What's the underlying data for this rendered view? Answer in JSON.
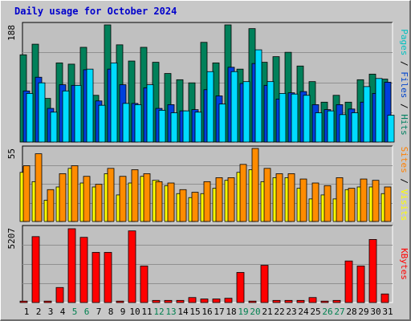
{
  "chart_data": {
    "type": "bar",
    "title": "Daily usage for October 2024",
    "categories": [
      "1",
      "2",
      "3",
      "4",
      "5",
      "6",
      "7",
      "8",
      "9",
      "10",
      "11",
      "12",
      "13",
      "14",
      "15",
      "16",
      "17",
      "18",
      "19",
      "20",
      "21",
      "22",
      "23",
      "24",
      "25",
      "26",
      "27",
      "28",
      "29",
      "30",
      "31"
    ],
    "weekend_days": [
      "5",
      "6",
      "12",
      "13",
      "19",
      "20",
      "26",
      "27"
    ],
    "panels": [
      {
        "name": "requests",
        "max_label": "188",
        "ylim": [
          0,
          188
        ],
        "legend": [
          "Pages",
          "Files",
          "Hits"
        ],
        "legend_colors": [
          "#00c0c0",
          "#0044cc",
          "#008060"
        ],
        "series": [
          {
            "name": "Hits",
            "color": "#00805a",
            "values": [
              140,
              157,
              70,
              127,
              125,
              152,
              75,
              188,
              156,
              130,
              152,
              128,
              110,
              100,
              95,
              160,
              127,
              188,
              117,
              182,
              128,
              137,
              144,
              122,
              97,
              64,
              75,
              64,
              100,
              109,
              101
            ]
          },
          {
            "name": "Files",
            "color": "#0040dc",
            "values": [
              82,
              104,
              54,
              92,
              91,
              116,
              66,
              117,
              92,
              62,
              87,
              54,
              60,
              50,
              52,
              84,
              74,
              120,
              94,
              126,
              91,
              69,
              79,
              81,
              60,
              52,
              60,
              53,
              64,
              78,
              96
            ]
          },
          {
            "name": "Pages",
            "color": "#00dcff",
            "values": [
              78,
              95,
              48,
              82,
              91,
              117,
              59,
              127,
              62,
              60,
              92,
              51,
              47,
              50,
              48,
              113,
              61,
              113,
              97,
              148,
              97,
              78,
              77,
              75,
              47,
              50,
              44,
              47,
              89,
              102,
              43
            ]
          }
        ]
      },
      {
        "name": "visitors",
        "max_label": "55",
        "ylim": [
          0,
          55
        ],
        "legend": [
          "Sites",
          "Visits"
        ],
        "legend_colors": [
          "#ff8000",
          "#ffff00"
        ],
        "series": [
          {
            "name": "Visits",
            "color": "#ffff00",
            "values": [
              37,
              30,
              16,
              26,
              40,
              29,
              26,
              36,
              20,
              29,
              34,
              31,
              27,
              21,
              18,
              21,
              25,
              31,
              37,
              39,
              30,
              33,
              33,
              25,
              17,
              20,
              17,
              24,
              26,
              26,
              21
            ]
          },
          {
            "name": "Sites",
            "color": "#ff8c00",
            "values": [
              42,
              51,
              24,
              36,
              42,
              34,
              28,
              40,
              34,
              39,
              36,
              30,
              29,
              24,
              22,
              30,
              33,
              33,
              43,
              55,
              40,
              36,
              36,
              32,
              29,
              27,
              33,
              25,
              32,
              31,
              26
            ]
          }
        ]
      },
      {
        "name": "kbytes",
        "max_label": "5207",
        "ylim": [
          0,
          5207
        ],
        "legend": [
          "KBytes"
        ],
        "legend_colors": [
          "#ff0000"
        ],
        "series": [
          {
            "name": "KBytes",
            "color": "#ff0000",
            "values": [
              100,
              4600,
              100,
              1050,
              5150,
              4550,
              3500,
              3500,
              100,
              5000,
              2550,
              150,
              150,
              150,
              350,
              250,
              250,
              300,
              2100,
              100,
              2600,
              150,
              150,
              150,
              350,
              100,
              150,
              2900,
              2550,
              4400,
              600
            ]
          }
        ]
      }
    ]
  }
}
